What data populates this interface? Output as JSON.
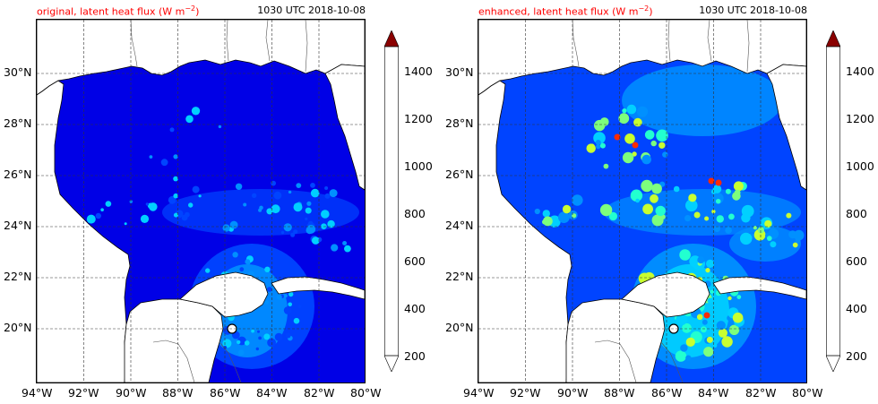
{
  "panels": [
    {
      "title_left_prefix": "original, latent heat flux (W m",
      "title_left_exp": "−2",
      "title_left_suffix": ")",
      "title_right": "1030 UTC 2018-10-08",
      "variant": "original"
    },
    {
      "title_left_prefix": "enhanced, latent heat flux (W m",
      "title_left_exp": "−2",
      "title_left_suffix": ")",
      "title_right": "1030 UTC 2018-10-08",
      "variant": "enhanced"
    }
  ],
  "lon_ticks": [
    "94°W",
    "92°W",
    "90°W",
    "88°W",
    "86°W",
    "84°W",
    "82°W",
    "80°W"
  ],
  "lat_ticks": [
    "30°N",
    "28°N",
    "26°N",
    "24°N",
    "22°N",
    "20°N"
  ],
  "colorbar": {
    "labels": [
      "1400",
      "1200",
      "1000",
      "800",
      "600",
      "400",
      "200"
    ],
    "colors": [
      "#00009a",
      "#0000e6",
      "#0044ff",
      "#0090ff",
      "#00d0ff",
      "#22ffd0",
      "#7dff7d",
      "#c8ff30",
      "#ffff00",
      "#ffc000",
      "#ff7a00",
      "#ff2a00",
      "#c80000",
      "#8a0000"
    ],
    "extend": "both"
  },
  "colors": {
    "title_accent": "#ff0000",
    "land": "#ffffff",
    "ocean_original": "#0000e6",
    "ocean_enhanced": "#0044ff"
  }
}
